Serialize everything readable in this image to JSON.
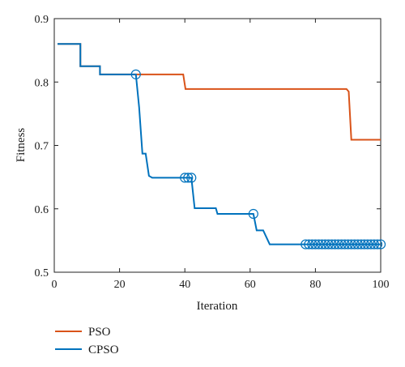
{
  "chart_data": {
    "type": "line",
    "xlabel": "Iteration",
    "ylabel": "Fitness",
    "xlim": [
      0,
      100
    ],
    "ylim": [
      0.5,
      0.9
    ],
    "xticks": [
      "0",
      "20",
      "40",
      "60",
      "80",
      "100"
    ],
    "yticks": [
      "0.5",
      "0.6",
      "0.7",
      "0.8",
      "0.9"
    ],
    "grid": false,
    "legend_position": "bottom-left, below plot",
    "series": [
      {
        "name": "PSO",
        "color": "#d95319",
        "step": true,
        "points": [
          [
            1,
            0.86
          ],
          [
            8,
            0.86
          ],
          [
            8,
            0.825
          ],
          [
            14,
            0.825
          ],
          [
            14,
            0.812
          ],
          [
            25,
            0.812
          ],
          [
            39.5,
            0.812
          ],
          [
            40.2,
            0.789
          ],
          [
            89.5,
            0.789
          ],
          [
            90.2,
            0.785
          ],
          [
            91,
            0.709
          ],
          [
            100,
            0.709
          ]
        ]
      },
      {
        "name": "CPSO",
        "color": "#0072bd",
        "step": true,
        "points": [
          [
            1,
            0.86
          ],
          [
            8,
            0.86
          ],
          [
            8,
            0.825
          ],
          [
            14,
            0.825
          ],
          [
            14,
            0.812
          ],
          [
            25,
            0.812
          ],
          [
            26,
            0.76
          ],
          [
            27,
            0.687
          ],
          [
            28,
            0.687
          ],
          [
            29,
            0.652
          ],
          [
            30,
            0.649
          ],
          [
            42,
            0.649
          ],
          [
            43,
            0.601
          ],
          [
            49.5,
            0.601
          ],
          [
            50,
            0.592
          ],
          [
            61,
            0.592
          ],
          [
            62,
            0.566
          ],
          [
            64,
            0.566
          ],
          [
            66,
            0.544
          ],
          [
            100,
            0.544
          ]
        ],
        "markers": [
          [
            25,
            0.812
          ],
          [
            40,
            0.649
          ],
          [
            41,
            0.649
          ],
          [
            42,
            0.649
          ],
          [
            61,
            0.592
          ],
          [
            77,
            0.544
          ],
          [
            78,
            0.544
          ],
          [
            79,
            0.544
          ],
          [
            80,
            0.544
          ],
          [
            81,
            0.544
          ],
          [
            82,
            0.544
          ],
          [
            83,
            0.544
          ],
          [
            84,
            0.544
          ],
          [
            85,
            0.544
          ],
          [
            86,
            0.544
          ],
          [
            87,
            0.544
          ],
          [
            88,
            0.544
          ],
          [
            89,
            0.544
          ],
          [
            90,
            0.544
          ],
          [
            91,
            0.544
          ],
          [
            92,
            0.544
          ],
          [
            93,
            0.544
          ],
          [
            94,
            0.544
          ],
          [
            95,
            0.544
          ],
          [
            96,
            0.544
          ],
          [
            97,
            0.544
          ],
          [
            98,
            0.544
          ],
          [
            99,
            0.544
          ],
          [
            100,
            0.544
          ]
        ]
      }
    ]
  }
}
